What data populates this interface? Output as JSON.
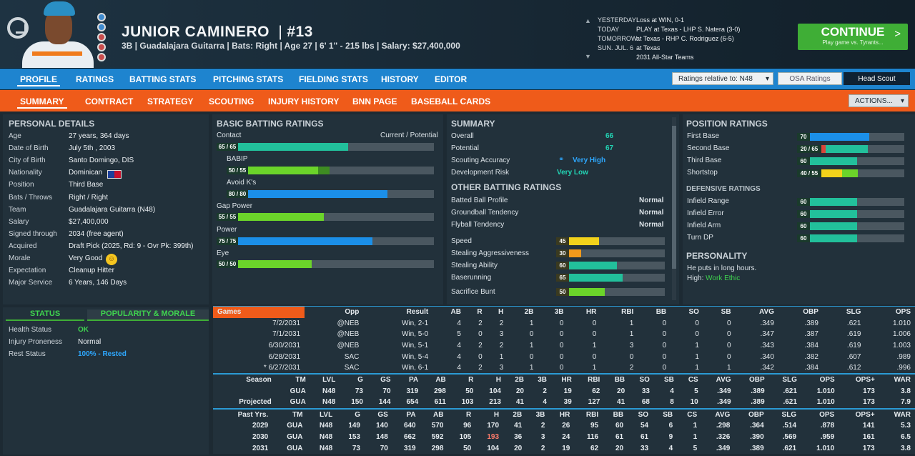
{
  "header": {
    "name": "JUNIOR CAMINERO",
    "sep": "|",
    "number": "#13",
    "info": "3B | Guadalajara Guitarra | Bats: Right | Age 27 | 6' 1\" - 215 lbs | Salary: $27,400,000"
  },
  "schedule": [
    {
      "day": "YESTERDAY",
      "text": "Loss at WIN, 0-1"
    },
    {
      "day": "TODAY",
      "text": "PLAY at Texas - LHP S. Natera (3-0)"
    },
    {
      "day": "TOMORROW",
      "text": "at Texas - RHP C. Rodriguez (6-5)"
    },
    {
      "day": "SUN. JUL. 6",
      "text": "at Texas"
    },
    {
      "day": "",
      "text": "2031 All-Star Teams"
    }
  ],
  "continue": {
    "label": "CONTINUE",
    "sub": "Play game vs. Tyrants...",
    "chev": ">"
  },
  "nav1": [
    "PROFILE",
    "RATINGS",
    "BATTING STATS",
    "PITCHING STATS",
    "FIELDING STATS",
    "HISTORY",
    "EDITOR"
  ],
  "ratings_rel": "Ratings relative to: N48",
  "osa": "OSA Ratings",
  "scout": "Head Scout",
  "nav2": [
    "SUMMARY",
    "CONTRACT",
    "STRATEGY",
    "SCOUTING",
    "INJURY HISTORY",
    "BNN PAGE",
    "BASEBALL CARDS"
  ],
  "actions": "ACTIONS...",
  "personal": {
    "title": "PERSONAL DETAILS",
    "rows": [
      [
        "Age",
        "27 years, 364 days"
      ],
      [
        "Date of Birth",
        "July 5th , 2003"
      ],
      [
        "City of Birth",
        "Santo Domingo, DIS"
      ],
      [
        "Nationality",
        "Dominican"
      ],
      [
        "Position",
        "Third Base"
      ],
      [
        "Bats / Throws",
        "Right / Right"
      ],
      [
        "Team",
        "Guadalajara Guitarra (N48)"
      ],
      [
        "Salary",
        "$27,400,000"
      ],
      [
        "Signed through",
        "2034 (free agent)"
      ],
      [
        "Acquired",
        "Draft Pick (2025, Rd: 9 - Ovr Pk: 399th)"
      ],
      [
        "Morale",
        "Very Good"
      ],
      [
        "Expectation",
        "Cleanup Hitter"
      ],
      [
        "Major Service",
        "6 Years, 146 Days"
      ]
    ]
  },
  "status": {
    "tab1": "STATUS",
    "tab2": "POPULARITY & MORALE",
    "rows": [
      [
        "Health Status",
        "OK"
      ],
      [
        "Injury Proneness",
        "Normal"
      ],
      [
        "Rest Status",
        "100% - Rested"
      ]
    ]
  },
  "batting": {
    "title": "BASIC BATTING RATINGS",
    "cp": "Current / Potential",
    "items": [
      {
        "label": "Contact",
        "cur": 65,
        "pot": 65,
        "text": "65 / 65",
        "color": "#22c09b",
        "indent": false
      },
      {
        "label": "BABIP",
        "cur": 50,
        "pot": 55,
        "text": "50 / 55",
        "color": "#6bd42a",
        "indent": true
      },
      {
        "label": "Avoid K's",
        "cur": 80,
        "pot": 80,
        "text": "80 / 80",
        "color": "#1b8fe8",
        "indent": true
      },
      {
        "label": "Gap Power",
        "cur": 55,
        "pot": 55,
        "text": "55 / 55",
        "color": "#6bd42a",
        "indent": false
      },
      {
        "label": "Power",
        "cur": 75,
        "pot": 75,
        "text": "75 / 75",
        "color": "#1b8fe8",
        "indent": false
      },
      {
        "label": "Eye",
        "cur": 50,
        "pot": 50,
        "text": "50 / 50",
        "color": "#6bd42a",
        "indent": false
      }
    ]
  },
  "summary": {
    "title": "SUMMARY",
    "rows": [
      [
        "Overall",
        "66"
      ],
      [
        "Potential",
        "67"
      ],
      [
        "Scouting Accuracy",
        "Very High"
      ],
      [
        "Development Risk",
        "Very Low"
      ]
    ],
    "other_title": "OTHER BATTING RATINGS",
    "other": [
      [
        "Batted Ball Profile",
        "Normal"
      ],
      [
        "Groundball Tendency",
        "Normal"
      ],
      [
        "Flyball Tendency",
        "Normal"
      ]
    ],
    "speed": [
      {
        "label": "Speed",
        "v": 45,
        "color": "#f2d21b"
      },
      {
        "label": "Stealing Aggressiveness",
        "v": 30,
        "color": "#f29a1b"
      },
      {
        "label": "Stealing Ability",
        "v": 60,
        "color": "#22c09b"
      },
      {
        "label": "Baserunning",
        "v": 65,
        "color": "#22c09b"
      },
      {
        "label": "Sacrifice Bunt",
        "v": 50,
        "color": "#6bd42a"
      }
    ]
  },
  "position": {
    "title": "POSITION RATINGS",
    "items": [
      {
        "label": "First Base",
        "text": "70",
        "cur": 70,
        "pot": 70,
        "color": "#1b8fe8",
        "bcolor": "#1b8fe8"
      },
      {
        "label": "Second Base",
        "text": "20 / 65",
        "cur": 20,
        "pot": 65,
        "color": "#22c09b",
        "bcolor": "#d9453a"
      },
      {
        "label": "Third Base",
        "text": "60",
        "cur": 60,
        "pot": 60,
        "color": "#22c09b",
        "bcolor": "#22c09b"
      },
      {
        "label": "Shortstop",
        "text": "40 / 55",
        "cur": 40,
        "pot": 55,
        "color": "#6bd42a",
        "bcolor": "#f2d21b"
      }
    ],
    "def_title": "DEFENSIVE RATINGS",
    "def": [
      [
        "Infield Range",
        "60"
      ],
      [
        "Infield Error",
        "60"
      ],
      [
        "Infield Arm",
        "60"
      ],
      [
        "Turn DP",
        "60"
      ]
    ],
    "pers_title": "PERSONALITY",
    "pers1": "He puts in long hours.",
    "pers2k": "High:",
    "pers2v": "Work Ethic"
  },
  "games": {
    "head": [
      "Games",
      "Opp",
      "Result",
      "AB",
      "R",
      "H",
      "2B",
      "3B",
      "HR",
      "RBI",
      "BB",
      "SO",
      "SB",
      "AVG",
      "OBP",
      "SLG",
      "OPS"
    ],
    "rows": [
      [
        "7/2/2031",
        "@NEB",
        "Win, 2-1",
        "4",
        "2",
        "2",
        "1",
        "0",
        "0",
        "1",
        "0",
        "0",
        "0",
        ".349",
        ".389",
        ".621",
        "1.010"
      ],
      [
        "7/1/2031",
        "@NEB",
        "Win, 5-0",
        "5",
        "0",
        "3",
        "0",
        "0",
        "0",
        "1",
        "0",
        "0",
        "0",
        ".347",
        ".387",
        ".619",
        "1.006"
      ],
      [
        "6/30/2031",
        "@NEB",
        "Win, 5-1",
        "4",
        "2",
        "2",
        "1",
        "0",
        "1",
        "3",
        "0",
        "1",
        "0",
        ".343",
        ".384",
        ".619",
        "1.003"
      ],
      [
        "6/28/2031",
        "SAC",
        "Win, 5-4",
        "4",
        "0",
        "1",
        "0",
        "0",
        "0",
        "0",
        "0",
        "1",
        "0",
        ".340",
        ".382",
        ".607",
        ".989"
      ],
      [
        "* 6/27/2031",
        "SAC",
        "Win, 6-1",
        "4",
        "2",
        "3",
        "1",
        "0",
        "1",
        "2",
        "0",
        "1",
        "1",
        ".342",
        ".384",
        ".612",
        ".996"
      ]
    ]
  },
  "season": {
    "head": [
      "Season",
      "TM",
      "LVL",
      "G",
      "GS",
      "PA",
      "AB",
      "R",
      "H",
      "2B",
      "3B",
      "HR",
      "RBI",
      "BB",
      "SO",
      "SB",
      "CS",
      "AVG",
      "OBP",
      "SLG",
      "OPS",
      "OPS+",
      "WAR"
    ],
    "rows": [
      [
        "",
        "GUA",
        "N48",
        "73",
        "70",
        "319",
        "298",
        "50",
        "104",
        "20",
        "2",
        "19",
        "62",
        "20",
        "33",
        "4",
        "5",
        ".349",
        ".389",
        ".621",
        "1.010",
        "173",
        "3.8"
      ],
      [
        "Projected",
        "GUA",
        "N48",
        "150",
        "144",
        "654",
        "611",
        "103",
        "213",
        "41",
        "4",
        "39",
        "127",
        "41",
        "68",
        "8",
        "10",
        ".349",
        ".389",
        ".621",
        "1.010",
        "173",
        "7.9"
      ]
    ]
  },
  "past": {
    "head": [
      "Past Yrs.",
      "TM",
      "LVL",
      "G",
      "GS",
      "PA",
      "AB",
      "R",
      "H",
      "2B",
      "3B",
      "HR",
      "RBI",
      "BB",
      "SO",
      "SB",
      "CS",
      "AVG",
      "OBP",
      "SLG",
      "OPS",
      "OPS+",
      "WAR"
    ],
    "rows": [
      [
        "2029",
        "GUA",
        "N48",
        "149",
        "140",
        "640",
        "570",
        "96",
        "170",
        "41",
        "2",
        "26",
        "95",
        "60",
        "54",
        "6",
        "1",
        ".298",
        ".364",
        ".514",
        ".878",
        "141",
        "5.3"
      ],
      [
        "2030",
        "GUA",
        "N48",
        "153",
        "148",
        "662",
        "592",
        "105",
        "193",
        "36",
        "3",
        "24",
        "116",
        "61",
        "61",
        "9",
        "1",
        ".326",
        ".390",
        ".569",
        ".959",
        "161",
        "6.5"
      ],
      [
        "2031",
        "GUA",
        "N48",
        "73",
        "70",
        "319",
        "298",
        "50",
        "104",
        "20",
        "2",
        "19",
        "62",
        "20",
        "33",
        "4",
        "5",
        ".349",
        ".389",
        ".621",
        "1.010",
        "173",
        "3.8"
      ]
    ]
  },
  "colors": {
    "blue": "#1e84cf",
    "orange": "#ef5b1a",
    "green": "#3fae36",
    "accent": "#22d4b4"
  }
}
